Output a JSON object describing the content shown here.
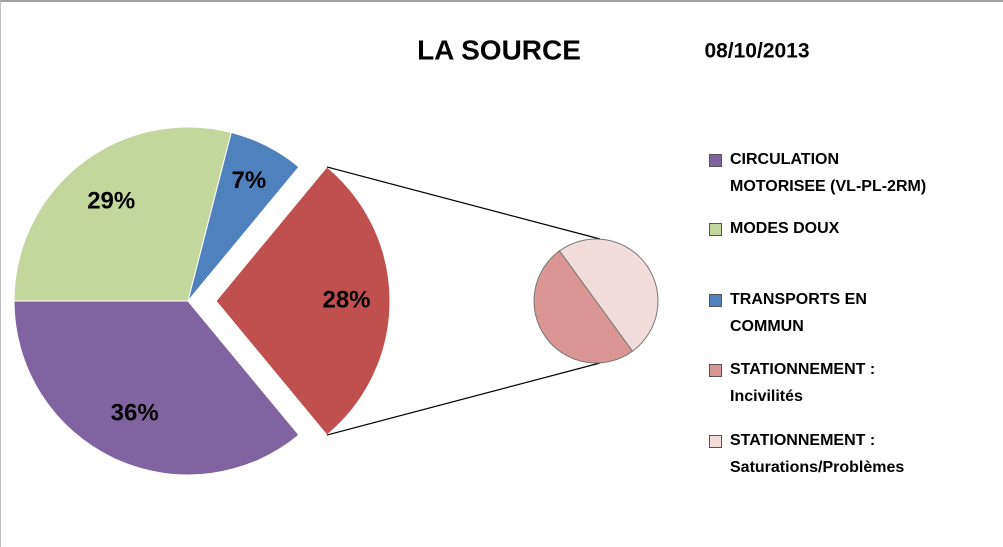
{
  "chart_data": {
    "type": "pie_of_pie",
    "title": "LA SOURCE",
    "subtitle": "08/10/2013",
    "categories": [
      "CIRCULATION\nMOTORISEE (VL-PL-2RM)",
      "MODES DOUX",
      "TRANSPORTS EN\nCOMMUN",
      "STATIONNEMENT :\nIncivilités",
      "STATIONNEMENT :\nSaturations/Problèmes"
    ],
    "values": [
      36,
      29,
      7,
      14,
      14
    ],
    "value_labels": [
      "36%",
      "29%",
      "7%",
      null,
      null
    ],
    "colors": [
      "#8064a2",
      "#c3d69b",
      "#4f81bd",
      "#d99694",
      "#f2dcdb"
    ],
    "secondary_total": 28,
    "secondary_total_label": "28%",
    "secondary_color": "#c0504d",
    "legend": "right"
  }
}
